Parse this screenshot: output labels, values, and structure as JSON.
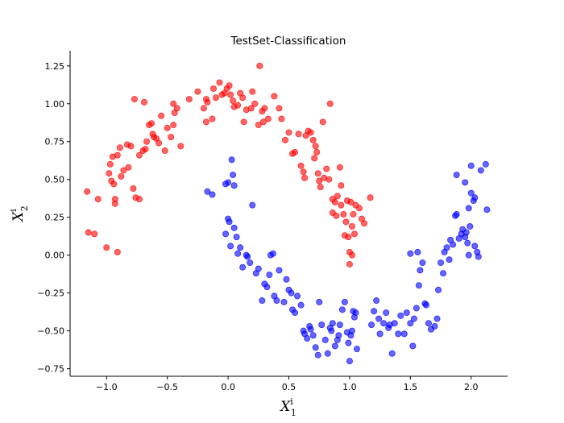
{
  "chart_data": {
    "type": "scatter",
    "title": "TestSet-Classification",
    "xlabel": {
      "base": "X",
      "sup": "i",
      "sub": "1"
    },
    "ylabel": {
      "base": "X",
      "sup": "i",
      "sub": "2"
    },
    "xlim": [
      -1.3,
      2.3
    ],
    "ylim": [
      -0.8,
      1.35
    ],
    "x_ticks": [
      -1.0,
      -0.5,
      0.0,
      0.5,
      1.0,
      1.5,
      2.0
    ],
    "x_tick_labels": [
      "−1.0",
      "−0.5",
      "0.0",
      "0.5",
      "1.0",
      "1.5",
      "2.0"
    ],
    "y_ticks": [
      -0.75,
      -0.5,
      -0.25,
      0.0,
      0.25,
      0.5,
      0.75,
      1.0,
      1.25
    ],
    "y_tick_labels": [
      "−0.75",
      "−0.50",
      "−0.25",
      "0.00",
      "0.25",
      "0.50",
      "0.75",
      "1.00",
      "1.25"
    ],
    "grid": false,
    "legend": "none",
    "series": [
      {
        "color": "#ff0000",
        "points": [
          [
            -1.16,
            0.42
          ],
          [
            -1.15,
            0.15
          ],
          [
            -1.07,
            0.37
          ],
          [
            -1.1,
            0.14
          ],
          [
            -1.0,
            0.05
          ],
          [
            -0.98,
            0.54
          ],
          [
            -0.97,
            0.6
          ],
          [
            -0.95,
            0.65
          ],
          [
            -0.96,
            0.49
          ],
          [
            -0.94,
            0.47
          ],
          [
            -0.93,
            0.37
          ],
          [
            -0.93,
            0.34
          ],
          [
            -0.91,
            0.02
          ],
          [
            -0.91,
            0.66
          ],
          [
            -0.89,
            0.71
          ],
          [
            -0.88,
            0.52
          ],
          [
            -0.86,
            0.56
          ],
          [
            -0.83,
            0.73
          ],
          [
            -0.82,
            0.58
          ],
          [
            -0.8,
            0.72
          ],
          [
            -0.78,
            0.44
          ],
          [
            -0.77,
            1.03
          ],
          [
            -0.76,
            0.38
          ],
          [
            -0.73,
            0.37
          ],
          [
            -0.73,
            0.66
          ],
          [
            -0.7,
            0.69
          ],
          [
            -0.68,
            0.7
          ],
          [
            -0.69,
            1.01
          ],
          [
            -0.67,
            0.75
          ],
          [
            -0.65,
            0.86
          ],
          [
            -0.63,
            0.87
          ],
          [
            -0.62,
            0.8
          ],
          [
            -0.61,
            0.78
          ],
          [
            -0.59,
            0.77
          ],
          [
            -0.57,
            0.74
          ],
          [
            -0.55,
            0.92
          ],
          [
            -0.52,
            0.69
          ],
          [
            -0.5,
            0.84
          ],
          [
            -0.47,
            0.78
          ],
          [
            -0.45,
            0.86
          ],
          [
            -0.44,
            0.94
          ],
          [
            -0.45,
            1.0
          ],
          [
            -0.42,
            0.97
          ],
          [
            -0.39,
            0.72
          ],
          [
            -0.32,
            1.03
          ],
          [
            -0.25,
            1.08
          ],
          [
            -0.2,
            0.97
          ],
          [
            -0.18,
            1.03
          ],
          [
            -0.17,
            1.01
          ],
          [
            -0.18,
            0.88
          ],
          [
            -0.13,
            0.9
          ],
          [
            -0.12,
            1.1
          ],
          [
            -0.1,
            1.04
          ],
          [
            -0.07,
            1.14
          ],
          [
            -0.05,
            1.06
          ],
          [
            -0.03,
            1.07
          ],
          [
            -0.01,
            1.1
          ],
          [
            0.01,
            1.12
          ],
          [
            0.02,
            1.06
          ],
          [
            0.04,
            1.02
          ],
          [
            0.05,
            0.98
          ],
          [
            0.08,
            0.99
          ],
          [
            0.1,
            1.07
          ],
          [
            0.12,
            1.04
          ],
          [
            0.13,
            0.88
          ],
          [
            0.15,
            0.96
          ],
          [
            0.19,
            0.97
          ],
          [
            0.2,
            1.08
          ],
          [
            0.22,
            1.0
          ],
          [
            0.25,
            0.86
          ],
          [
            0.26,
            1.25
          ],
          [
            0.28,
            0.95
          ],
          [
            0.29,
            0.88
          ],
          [
            0.3,
            0.97
          ],
          [
            0.33,
            0.9
          ],
          [
            0.38,
            1.05
          ],
          [
            0.42,
            0.97
          ],
          [
            0.44,
            0.9
          ],
          [
            0.47,
            0.76
          ],
          [
            0.5,
            0.81
          ],
          [
            0.53,
            0.67
          ],
          [
            0.55,
            0.68
          ],
          [
            0.58,
            0.8
          ],
          [
            0.6,
            0.59
          ],
          [
            0.62,
            0.55
          ],
          [
            0.63,
            0.51
          ],
          [
            0.64,
            0.79
          ],
          [
            0.66,
            0.82
          ],
          [
            0.68,
            0.81
          ],
          [
            0.7,
            0.76
          ],
          [
            0.71,
            0.64
          ],
          [
            0.72,
            0.72
          ],
          [
            0.73,
            0.68
          ],
          [
            0.74,
            0.54
          ],
          [
            0.75,
            0.49
          ],
          [
            0.76,
            0.45
          ],
          [
            0.78,
            0.88
          ],
          [
            0.79,
            0.51
          ],
          [
            0.81,
            0.57
          ],
          [
            0.83,
            0.5
          ],
          [
            0.84,
            1.0
          ],
          [
            0.86,
            0.37
          ],
          [
            0.86,
            0.28
          ],
          [
            0.88,
            0.35
          ],
          [
            0.89,
            0.26
          ],
          [
            0.9,
            0.39
          ],
          [
            0.92,
            0.58
          ],
          [
            0.93,
            0.46
          ],
          [
            0.93,
            0.33
          ],
          [
            0.95,
            0.27
          ],
          [
            0.96,
            0.13
          ],
          [
            0.97,
            0.22
          ],
          [
            0.98,
            0.36
          ],
          [
            0.99,
            0.12
          ],
          [
            1.0,
            0.02
          ],
          [
            1.01,
            0.35
          ],
          [
            1.02,
            0.19
          ],
          [
            1.03,
            0.27
          ],
          [
            1.04,
            0.14
          ],
          [
            1.05,
            0.33
          ],
          [
            1.08,
            0.31
          ],
          [
            1.1,
            0.24
          ],
          [
            1.12,
            0.21
          ],
          [
            1.17,
            0.38
          ],
          [
            1.0,
            -0.06
          ],
          [
            1.02,
            0.0
          ]
        ]
      },
      {
        "color": "#0000ff",
        "points": [
          [
            -0.17,
            0.42
          ],
          [
            -0.13,
            0.4
          ],
          [
            -0.02,
            0.47
          ],
          [
            0.0,
            0.48
          ],
          [
            0.03,
            0.63
          ],
          [
            0.04,
            0.53
          ],
          [
            0.05,
            0.46
          ],
          [
            -0.02,
            0.14
          ],
          [
            0.0,
            0.24
          ],
          [
            0.01,
            0.22
          ],
          [
            0.02,
            0.06
          ],
          [
            0.05,
            0.18
          ],
          [
            0.07,
            0.12
          ],
          [
            0.08,
            0.01
          ],
          [
            0.1,
            0.05
          ],
          [
            0.12,
            -0.08
          ],
          [
            0.15,
            0.0
          ],
          [
            0.16,
            -0.01
          ],
          [
            0.18,
            -0.05
          ],
          [
            0.2,
            0.33
          ],
          [
            0.23,
            -0.12
          ],
          [
            0.25,
            -0.09
          ],
          [
            0.28,
            -0.3
          ],
          [
            0.3,
            -0.19
          ],
          [
            0.32,
            -0.21
          ],
          [
            0.34,
            -0.13
          ],
          [
            0.35,
            0.0
          ],
          [
            0.37,
            0.01
          ],
          [
            0.38,
            -0.27
          ],
          [
            0.4,
            -0.3
          ],
          [
            0.42,
            -0.1
          ],
          [
            0.46,
            -0.31
          ],
          [
            0.48,
            -0.16
          ],
          [
            0.5,
            -0.23
          ],
          [
            0.52,
            -0.25
          ],
          [
            0.53,
            -0.36
          ],
          [
            0.55,
            -0.38
          ],
          [
            0.57,
            -0.27
          ],
          [
            0.6,
            -0.33
          ],
          [
            0.62,
            -0.5
          ],
          [
            0.63,
            -0.52
          ],
          [
            0.65,
            -0.55
          ],
          [
            0.67,
            -0.47
          ],
          [
            0.68,
            -0.49
          ],
          [
            0.7,
            -0.53
          ],
          [
            0.72,
            -0.61
          ],
          [
            0.74,
            -0.66
          ],
          [
            0.75,
            -0.31
          ],
          [
            0.77,
            -0.46
          ],
          [
            0.8,
            -0.56
          ],
          [
            0.82,
            -0.65
          ],
          [
            0.84,
            -0.48
          ],
          [
            0.85,
            -0.5
          ],
          [
            0.86,
            -0.45
          ],
          [
            0.88,
            -0.6
          ],
          [
            0.9,
            -0.56
          ],
          [
            0.91,
            -0.53
          ],
          [
            0.92,
            -0.46
          ],
          [
            0.94,
            -0.36
          ],
          [
            0.96,
            -0.31
          ],
          [
            0.98,
            -0.51
          ],
          [
            0.99,
            -0.58
          ],
          [
            1.0,
            -0.7
          ],
          [
            1.01,
            -0.53
          ],
          [
            1.02,
            -0.5
          ],
          [
            1.03,
            -0.37
          ],
          [
            1.04,
            -0.41
          ],
          [
            1.05,
            -0.38
          ],
          [
            1.06,
            -0.62
          ],
          [
            1.18,
            -0.46
          ],
          [
            1.2,
            -0.37
          ],
          [
            1.22,
            -0.3
          ],
          [
            1.24,
            -0.42
          ],
          [
            1.25,
            -0.52
          ],
          [
            1.28,
            -0.45
          ],
          [
            1.3,
            -0.38
          ],
          [
            1.32,
            -0.48
          ],
          [
            1.33,
            -0.46
          ],
          [
            1.35,
            -0.65
          ],
          [
            1.37,
            -0.45
          ],
          [
            1.4,
            -0.52
          ],
          [
            1.42,
            -0.4
          ],
          [
            1.45,
            -0.52
          ],
          [
            1.47,
            -0.38
          ],
          [
            1.5,
            -0.45
          ],
          [
            1.52,
            -0.6
          ],
          [
            1.53,
            -0.42
          ],
          [
            1.55,
            -0.35
          ],
          [
            1.57,
            -0.2
          ],
          [
            1.58,
            -0.1
          ],
          [
            1.6,
            -0.05
          ],
          [
            1.62,
            -0.32
          ],
          [
            1.63,
            -0.33
          ],
          [
            1.65,
            -0.45
          ],
          [
            1.67,
            -0.49
          ],
          [
            1.7,
            -0.47
          ],
          [
            1.72,
            -0.42
          ],
          [
            1.73,
            -0.23
          ],
          [
            1.75,
            -0.05
          ],
          [
            1.77,
            -0.12
          ],
          [
            1.78,
            0.02
          ],
          [
            1.8,
            0.05
          ],
          [
            1.82,
            -0.03
          ],
          [
            1.83,
            0.1
          ],
          [
            1.85,
            0.07
          ],
          [
            1.87,
            0.26
          ],
          [
            1.88,
            0.27
          ],
          [
            1.9,
            0.11
          ],
          [
            1.92,
            0.14
          ],
          [
            1.93,
            0.17
          ],
          [
            1.95,
            0.12
          ],
          [
            1.96,
            0.15
          ],
          [
            1.97,
            0.08
          ],
          [
            1.98,
            0.31
          ],
          [
            1.99,
            0.19
          ],
          [
            2.0,
            0.41
          ],
          [
            2.02,
            0.36
          ],
          [
            2.03,
            0.38
          ],
          [
            2.05,
            0.02
          ],
          [
            2.06,
            -0.01
          ],
          [
            1.88,
            0.53
          ],
          [
            1.95,
            0.48
          ],
          [
            2.0,
            0.59
          ],
          [
            2.08,
            0.56
          ],
          [
            2.12,
            0.6
          ],
          [
            2.13,
            0.3
          ],
          [
            1.98,
            0.0
          ],
          [
            2.03,
            0.06
          ],
          [
            1.5,
            0.01
          ],
          [
            1.56,
            0.02
          ]
        ]
      }
    ]
  }
}
